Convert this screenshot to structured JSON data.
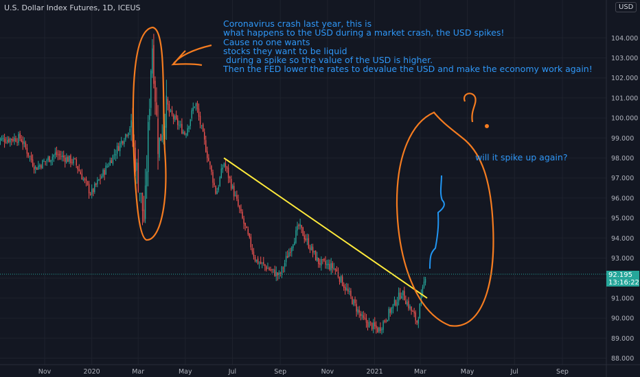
{
  "header": {
    "title": "U.S. Dollar Index Futures, 1D, ICEUS",
    "currency": "USD"
  },
  "last_price": {
    "value": "92.195",
    "countdown": "13:16:22",
    "numeric": 92.195
  },
  "annotations": {
    "main_text": "Coronavirus crash last year, this is\nwhat happens to the USD during a market crash, the USD spikes!\nCause no one wants\nstocks they want to be liquid\n during a spike so the value of the USD is higher.\nThen the FED lower the rates to devalue the USD and make the economy work again!",
    "question_text": "will it spike up again?"
  },
  "colors": {
    "background": "#131722",
    "up": "#26a69a",
    "down": "#ef5350",
    "annotation_text": "#2f97f7",
    "orange_drawing": "#f57c20",
    "trendline": "#ffeb3b",
    "blue_drawing": "#2196f3"
  },
  "chart_data": {
    "type": "candlestick",
    "title": "U.S. Dollar Index Futures, 1D, ICEUS",
    "y_ticks": [
      "88.000",
      "89.000",
      "90.000",
      "91.000",
      "92.000",
      "93.000",
      "94.000",
      "95.000",
      "96.000",
      "97.000",
      "98.000",
      "99.000",
      "100.000",
      "101.000",
      "102.000",
      "103.000",
      "104.000"
    ],
    "ylim": [
      87.6,
      105.3
    ],
    "x_ticks": [
      "Nov",
      "2020",
      "Mar",
      "May",
      "Jul",
      "Sep",
      "Nov",
      "2021",
      "Mar",
      "May",
      "Jul",
      "Sep"
    ],
    "x_tick_dates": [
      "2019-11",
      "2020-01",
      "2020-03",
      "2020-05",
      "2020-07",
      "2020-09",
      "2020-11",
      "2021-01",
      "2021-03",
      "2021-05",
      "2021-07",
      "2021-09"
    ],
    "path_dates": [
      "2019-09-01",
      "2019-10-01",
      "2019-10-20",
      "2019-11-15",
      "2019-12-10",
      "2019-12-31",
      "2020-02-20",
      "2020-03-09",
      "2020-03-19",
      "2020-03-27",
      "2020-04-06",
      "2020-05-01",
      "2020-05-14",
      "2020-06-10",
      "2020-06-20",
      "2020-07-31",
      "2020-08-31",
      "2020-09-25",
      "2020-10-20",
      "2020-11-10",
      "2020-12-17",
      "2021-01-06",
      "2021-02-05",
      "2021-02-25",
      "2021-03-08"
    ],
    "path_values": [
      98.9,
      99.0,
      97.5,
      98.2,
      97.8,
      96.2,
      99.6,
      94.8,
      103.9,
      98.5,
      100.5,
      99.2,
      100.8,
      96.2,
      97.8,
      92.9,
      92.1,
      94.6,
      92.8,
      92.5,
      89.9,
      89.4,
      91.3,
      89.8,
      92.2
    ],
    "trendline": {
      "start": [
        "2020-06-20",
        98.0
      ],
      "end": [
        "2021-03-10",
        91.0
      ]
    }
  }
}
